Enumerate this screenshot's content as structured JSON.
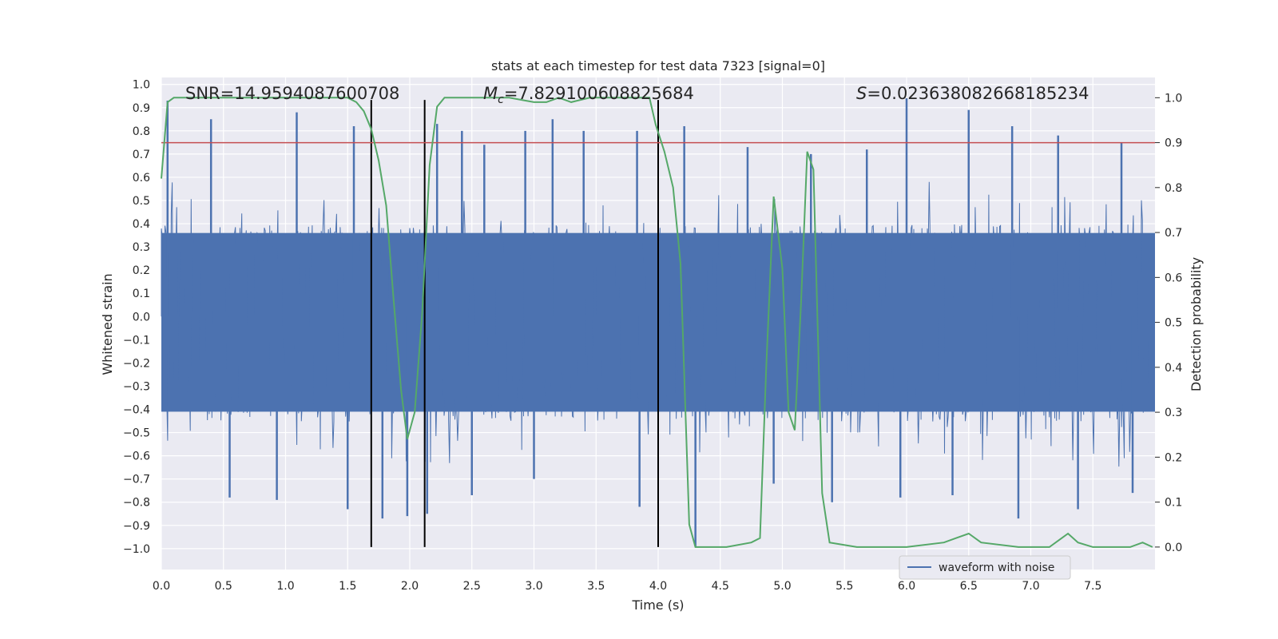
{
  "chart_data": {
    "type": "line",
    "title": "stats at each timestep for test data 7323 [signal=0]",
    "xlabel": "Time (s)",
    "ylabel_left": "Whitened strain",
    "ylabel_right": "Detection probability",
    "xlim": [
      0,
      8
    ],
    "ylim_left": [
      -1.09,
      1.03
    ],
    "ylim_right": [
      -0.05,
      1.045
    ],
    "x_ticks": [
      "0.0",
      "0.5",
      "1.0",
      "1.5",
      "2.0",
      "2.5",
      "3.0",
      "3.5",
      "4.0",
      "4.5",
      "5.0",
      "5.5",
      "6.0",
      "6.5",
      "7.0",
      "7.5"
    ],
    "y_left_ticks": [
      "1.0",
      "0.9",
      "0.8",
      "0.7",
      "0.6",
      "0.5",
      "0.4",
      "0.3",
      "0.2",
      "0.1",
      "0.0",
      "-0.1",
      "-0.2",
      "-0.3",
      "-0.4",
      "-0.5",
      "-0.6",
      "-0.7",
      "-0.8",
      "-0.9",
      "-1.0"
    ],
    "y_right_ticks": [
      "1.0",
      "0.9",
      "0.8",
      "0.7",
      "0.6",
      "0.5",
      "0.4",
      "0.3",
      "0.2",
      "0.1",
      "0.0"
    ],
    "annotations": {
      "snr": "SNR=14.9594087600708",
      "mc": "=7.829100608825684",
      "s": "=0.023638082668185234",
      "mc_symbol": "M",
      "mc_sub": "c",
      "s_symbol": "S"
    },
    "threshold": {
      "value": 0.9,
      "axis": "right",
      "color": "#c44e52"
    },
    "vertical_lines": [
      1.69,
      2.12,
      4.0
    ],
    "series": [
      {
        "name": "waveform with noise",
        "color": "#4c72b0",
        "axis": "left",
        "envelope": {
          "low": -0.41,
          "high": 0.36,
          "seed": 7323,
          "samples": 1100
        },
        "spikes": [
          {
            "t": 0.05,
            "v": 0.93
          },
          {
            "t": 0.4,
            "v": 0.85
          },
          {
            "t": 1.09,
            "v": 0.88
          },
          {
            "t": 1.55,
            "v": 0.82
          },
          {
            "t": 2.22,
            "v": 0.83
          },
          {
            "t": 2.42,
            "v": 0.8
          },
          {
            "t": 2.6,
            "v": 0.74
          },
          {
            "t": 2.93,
            "v": 0.8
          },
          {
            "t": 3.15,
            "v": 0.85
          },
          {
            "t": 3.4,
            "v": 0.8
          },
          {
            "t": 3.83,
            "v": 0.8
          },
          {
            "t": 4.21,
            "v": 0.82
          },
          {
            "t": 4.72,
            "v": 0.73
          },
          {
            "t": 5.23,
            "v": 0.7
          },
          {
            "t": 5.68,
            "v": 0.72
          },
          {
            "t": 6.0,
            "v": 0.94
          },
          {
            "t": 6.5,
            "v": 0.89
          },
          {
            "t": 6.85,
            "v": 0.82
          },
          {
            "t": 7.22,
            "v": 0.78
          },
          {
            "t": 7.73,
            "v": 0.75
          },
          {
            "t": 0.55,
            "v": -0.78
          },
          {
            "t": 0.93,
            "v": -0.79
          },
          {
            "t": 1.5,
            "v": -0.83
          },
          {
            "t": 1.78,
            "v": -0.87
          },
          {
            "t": 1.98,
            "v": -0.86
          },
          {
            "t": 2.14,
            "v": -0.85
          },
          {
            "t": 2.5,
            "v": -0.77
          },
          {
            "t": 3.0,
            "v": -0.7
          },
          {
            "t": 3.85,
            "v": -0.82
          },
          {
            "t": 4.3,
            "v": -0.99
          },
          {
            "t": 4.93,
            "v": -0.72
          },
          {
            "t": 5.4,
            "v": -0.8
          },
          {
            "t": 5.95,
            "v": -0.78
          },
          {
            "t": 6.37,
            "v": -0.77
          },
          {
            "t": 6.9,
            "v": -0.87
          },
          {
            "t": 7.38,
            "v": -0.83
          },
          {
            "t": 7.82,
            "v": -0.76
          }
        ]
      },
      {
        "name": "detection probability",
        "color": "#55a868",
        "axis": "right",
        "points": [
          [
            0.0,
            0.82
          ],
          [
            0.05,
            0.99
          ],
          [
            0.1,
            1.0
          ],
          [
            0.5,
            1.0
          ],
          [
            1.0,
            1.0
          ],
          [
            1.5,
            1.0
          ],
          [
            1.57,
            0.99
          ],
          [
            1.63,
            0.97
          ],
          [
            1.69,
            0.93
          ],
          [
            1.75,
            0.86
          ],
          [
            1.81,
            0.76
          ],
          [
            1.87,
            0.55
          ],
          [
            1.93,
            0.35
          ],
          [
            1.98,
            0.24
          ],
          [
            2.04,
            0.3
          ],
          [
            2.1,
            0.52
          ],
          [
            2.16,
            0.85
          ],
          [
            2.22,
            0.98
          ],
          [
            2.28,
            1.0
          ],
          [
            2.5,
            1.0
          ],
          [
            2.8,
            1.0
          ],
          [
            3.0,
            0.99
          ],
          [
            3.1,
            0.99
          ],
          [
            3.2,
            1.0
          ],
          [
            3.3,
            0.99
          ],
          [
            3.45,
            1.0
          ],
          [
            3.55,
            1.0
          ],
          [
            3.7,
            1.0
          ],
          [
            3.93,
            1.0
          ],
          [
            3.98,
            0.94
          ],
          [
            4.05,
            0.88
          ],
          [
            4.12,
            0.8
          ],
          [
            4.18,
            0.63
          ],
          [
            4.25,
            0.05
          ],
          [
            4.3,
            0.0
          ],
          [
            4.4,
            0.0
          ],
          [
            4.55,
            0.0
          ],
          [
            4.75,
            0.01
          ],
          [
            4.82,
            0.02
          ],
          [
            4.87,
            0.4
          ],
          [
            4.93,
            0.78
          ],
          [
            5.0,
            0.62
          ],
          [
            5.05,
            0.3
          ],
          [
            5.1,
            0.26
          ],
          [
            5.15,
            0.54
          ],
          [
            5.2,
            0.88
          ],
          [
            5.25,
            0.84
          ],
          [
            5.32,
            0.12
          ],
          [
            5.38,
            0.01
          ],
          [
            5.6,
            0.0
          ],
          [
            6.0,
            0.0
          ],
          [
            6.3,
            0.01
          ],
          [
            6.4,
            0.02
          ],
          [
            6.5,
            0.03
          ],
          [
            6.6,
            0.01
          ],
          [
            6.9,
            0.0
          ],
          [
            7.15,
            0.0
          ],
          [
            7.25,
            0.02
          ],
          [
            7.3,
            0.03
          ],
          [
            7.38,
            0.01
          ],
          [
            7.5,
            0.0
          ],
          [
            7.8,
            0.0
          ],
          [
            7.9,
            0.01
          ],
          [
            7.98,
            0.0
          ]
        ]
      }
    ],
    "legend": {
      "position": "lower-right",
      "entries": [
        "waveform with noise"
      ]
    }
  }
}
